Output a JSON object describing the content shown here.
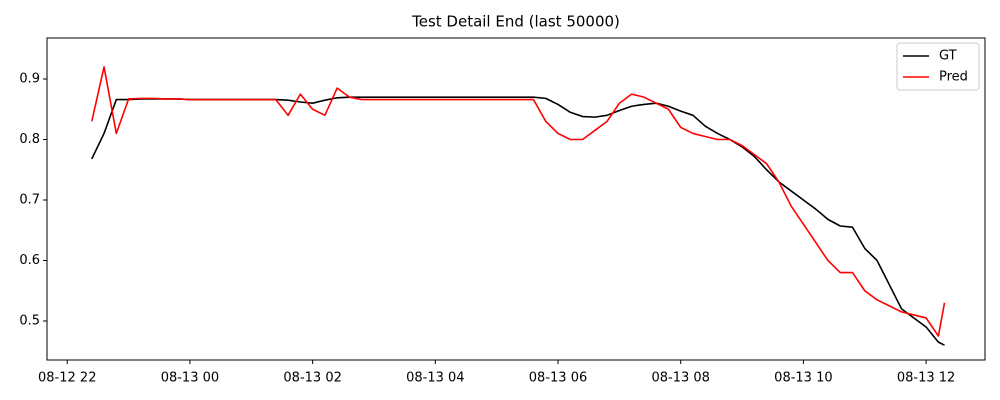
{
  "chart_data": {
    "type": "line",
    "title": "Test Detail End (last 50000)",
    "x": [
      22.4,
      22.6,
      22.8,
      23.0,
      23.2,
      23.4,
      23.6,
      23.8,
      24.0,
      24.2,
      24.4,
      24.6,
      24.8,
      25.0,
      25.2,
      25.4,
      25.6,
      25.8,
      26.0,
      26.2,
      26.4,
      26.6,
      26.8,
      27.0,
      27.2,
      27.4,
      27.6,
      27.8,
      28.0,
      28.2,
      28.4,
      28.6,
      28.8,
      29.0,
      29.2,
      29.4,
      29.6,
      29.8,
      30.0,
      30.2,
      30.4,
      30.6,
      30.8,
      31.0,
      31.2,
      31.4,
      31.6,
      31.8,
      32.0,
      32.2,
      32.4,
      32.6,
      32.8,
      33.0,
      33.2,
      33.4,
      33.6,
      33.8,
      34.0,
      34.2,
      34.4,
      34.6,
      34.8,
      35.0,
      35.2,
      35.4,
      35.6,
      35.8,
      36.0,
      36.2,
      36.3
    ],
    "series": [
      {
        "name": "GT",
        "color": "#000000",
        "values": [
          0.768,
          0.81,
          0.866,
          0.866,
          0.867,
          0.867,
          0.867,
          0.867,
          0.866,
          0.866,
          0.866,
          0.866,
          0.866,
          0.866,
          0.866,
          0.866,
          0.865,
          0.862,
          0.86,
          0.865,
          0.869,
          0.87,
          0.87,
          0.87,
          0.87,
          0.87,
          0.87,
          0.87,
          0.87,
          0.87,
          0.87,
          0.87,
          0.87,
          0.87,
          0.87,
          0.87,
          0.87,
          0.868,
          0.858,
          0.845,
          0.838,
          0.837,
          0.84,
          0.848,
          0.855,
          0.858,
          0.86,
          0.855,
          0.847,
          0.84,
          0.822,
          0.81,
          0.8,
          0.788,
          0.772,
          0.75,
          0.73,
          0.715,
          0.7,
          0.685,
          0.668,
          0.657,
          0.655,
          0.62,
          0.6,
          0.56,
          0.52,
          0.505,
          0.49,
          0.465,
          0.46
        ]
      },
      {
        "name": "Pred",
        "color": "#ff0000",
        "values": [
          0.83,
          0.92,
          0.81,
          0.867,
          0.868,
          0.868,
          0.867,
          0.867,
          0.866,
          0.866,
          0.866,
          0.866,
          0.866,
          0.866,
          0.866,
          0.866,
          0.84,
          0.875,
          0.85,
          0.84,
          0.885,
          0.87,
          0.866,
          0.866,
          0.866,
          0.866,
          0.866,
          0.866,
          0.866,
          0.866,
          0.866,
          0.866,
          0.866,
          0.866,
          0.866,
          0.866,
          0.866,
          0.83,
          0.81,
          0.8,
          0.8,
          0.815,
          0.83,
          0.86,
          0.875,
          0.87,
          0.86,
          0.85,
          0.82,
          0.81,
          0.805,
          0.8,
          0.8,
          0.79,
          0.775,
          0.76,
          0.73,
          0.69,
          0.66,
          0.63,
          0.6,
          0.58,
          0.58,
          0.55,
          0.535,
          0.525,
          0.515,
          0.51,
          0.505,
          0.475,
          0.53
        ]
      }
    ],
    "xlim": [
      21.67,
      36.96
    ],
    "ylim": [
      0.4355,
      0.9678
    ],
    "xticks": [
      {
        "value": 22,
        "label": "08-12 22"
      },
      {
        "value": 24,
        "label": "08-13 00"
      },
      {
        "value": 26,
        "label": "08-13 02"
      },
      {
        "value": 28,
        "label": "08-13 04"
      },
      {
        "value": 30,
        "label": "08-13 06"
      },
      {
        "value": 32,
        "label": "08-13 08"
      },
      {
        "value": 34,
        "label": "08-13 10"
      },
      {
        "value": 36,
        "label": "08-13 12"
      }
    ],
    "yticks": [
      0.5,
      0.6,
      0.7,
      0.8,
      0.9
    ],
    "legend": "upper-right"
  }
}
